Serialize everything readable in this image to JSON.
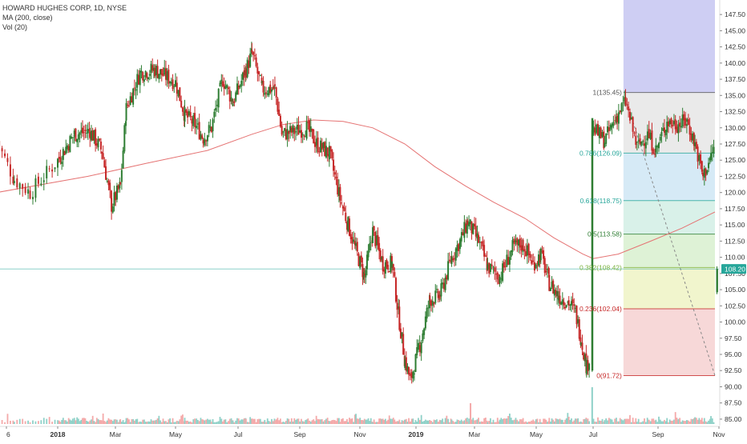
{
  "legend": {
    "symbol_line": "HOWARD HUGHES CORP, 1D, NYSE",
    "ma_line": "MA (200, close)",
    "vol_line": "Vol (20)"
  },
  "colors": {
    "up": "#26a69a",
    "up_body": "#2e7d32",
    "down": "#c62828",
    "ma": "#e57373",
    "price_badge": "#26a69a"
  },
  "chart_data": {
    "type": "candlestick",
    "title": "HOWARD HUGHES CORP, 1D, NYSE",
    "y_axis": {
      "side": "right",
      "ylim": [
        84.0,
        149.0
      ],
      "ticks": [
        "85.00",
        "87.50",
        "90.00",
        "92.50",
        "95.00",
        "97.50",
        "100.00",
        "102.50",
        "105.00",
        "107.50",
        "110.00",
        "112.50",
        "115.00",
        "117.50",
        "120.00",
        "122.50",
        "125.00",
        "127.50",
        "130.00",
        "132.50",
        "135.00",
        "137.50",
        "140.00",
        "142.50",
        "145.00",
        "147.50"
      ]
    },
    "x_axis": {
      "ticks": [
        "6",
        "2018",
        "Mar",
        "May",
        "Jul",
        "Sep",
        "Nov",
        "2019",
        "Mar",
        "May",
        "Jul",
        "Sep",
        "Nov"
      ],
      "tick_dates": [
        "2017-12-06",
        "2018-01-01",
        "2018-03-01",
        "2018-05-01",
        "2018-07-01",
        "2018-09-01",
        "2018-11-01",
        "2019-01-01",
        "2019-03-01",
        "2019-05-01",
        "2019-07-01",
        "2019-09-01",
        "2019-11-01"
      ]
    },
    "last_price": "108.20",
    "last_price_value": 108.2,
    "price_path": [
      {
        "date": "2017-12-01",
        "close": 128.0
      },
      {
        "date": "2017-12-10",
        "close": 122.0
      },
      {
        "date": "2017-12-18",
        "close": 120.0
      },
      {
        "date": "2018-01-01",
        "close": 125.0
      },
      {
        "date": "2018-01-18",
        "close": 129.0
      },
      {
        "date": "2018-02-03",
        "close": 129.5
      },
      {
        "date": "2018-02-15",
        "close": 126.5
      },
      {
        "date": "2018-02-25",
        "close": 118.0
      },
      {
        "date": "2018-03-06",
        "close": 121.0
      },
      {
        "date": "2018-03-12",
        "close": 133.0
      },
      {
        "date": "2018-03-26",
        "close": 138.5
      },
      {
        "date": "2018-04-10",
        "close": 139.0
      },
      {
        "date": "2018-05-01",
        "close": 137.0
      },
      {
        "date": "2018-05-10",
        "close": 132.0
      },
      {
        "date": "2018-05-20",
        "close": 130.5
      },
      {
        "date": "2018-05-28",
        "close": 128.5
      },
      {
        "date": "2018-06-05",
        "close": 130.0
      },
      {
        "date": "2018-06-16",
        "close": 137.5
      },
      {
        "date": "2018-06-26",
        "close": 134.0
      },
      {
        "date": "2018-07-09",
        "close": 139.0
      },
      {
        "date": "2018-07-15",
        "close": 141.5
      },
      {
        "date": "2018-07-25",
        "close": 136.0
      },
      {
        "date": "2018-08-07",
        "close": 136.0
      },
      {
        "date": "2018-08-14",
        "close": 129.0
      },
      {
        "date": "2018-08-28",
        "close": 129.5
      },
      {
        "date": "2018-09-08",
        "close": 130.0
      },
      {
        "date": "2018-09-18",
        "close": 127.5
      },
      {
        "date": "2018-10-01",
        "close": 126.0
      },
      {
        "date": "2018-10-12",
        "close": 119.0
      },
      {
        "date": "2018-10-20",
        "close": 115.0
      },
      {
        "date": "2018-10-28",
        "close": 111.0
      },
      {
        "date": "2018-11-06",
        "close": 107.0
      },
      {
        "date": "2018-11-15",
        "close": 114.0
      },
      {
        "date": "2018-11-26",
        "close": 109.0
      },
      {
        "date": "2018-12-06",
        "close": 109.0
      },
      {
        "date": "2018-12-14",
        "close": 100.0
      },
      {
        "date": "2018-12-20",
        "close": 94.0
      },
      {
        "date": "2018-12-26",
        "close": 91.0
      },
      {
        "date": "2019-01-05",
        "close": 96.5
      },
      {
        "date": "2019-01-15",
        "close": 103.5
      },
      {
        "date": "2019-01-25",
        "close": 104.0
      },
      {
        "date": "2019-02-06",
        "close": 110.0
      },
      {
        "date": "2019-02-16",
        "close": 113.0
      },
      {
        "date": "2019-02-22",
        "close": 115.5
      },
      {
        "date": "2019-03-05",
        "close": 112.5
      },
      {
        "date": "2019-03-14",
        "close": 108.5
      },
      {
        "date": "2019-03-26",
        "close": 107.0
      },
      {
        "date": "2019-04-08",
        "close": 111.5
      },
      {
        "date": "2019-04-18",
        "close": 112.0
      },
      {
        "date": "2019-04-28",
        "close": 109.0
      },
      {
        "date": "2019-05-06",
        "close": 110.5
      },
      {
        "date": "2019-05-15",
        "close": 106.0
      },
      {
        "date": "2019-05-25",
        "close": 104.0
      },
      {
        "date": "2019-06-05",
        "close": 103.0
      },
      {
        "date": "2019-06-12",
        "close": 101.5
      },
      {
        "date": "2019-06-18",
        "close": 97.5
      },
      {
        "date": "2019-06-24",
        "close": 93.0
      },
      {
        "date": "2019-06-28",
        "close": 95.0
      },
      {
        "date": "2019-06-30",
        "close": 130.0
      },
      {
        "date": "2019-07-12",
        "close": 128.0
      },
      {
        "date": "2019-07-24",
        "close": 132.0
      },
      {
        "date": "2019-08-01",
        "close": 134.0
      },
      {
        "date": "2019-08-12",
        "close": 127.0
      },
      {
        "date": "2019-08-22",
        "close": 129.0
      },
      {
        "date": "2019-08-30",
        "close": 126.5
      },
      {
        "date": "2019-09-10",
        "close": 131.0
      },
      {
        "date": "2019-09-20",
        "close": 130.5
      },
      {
        "date": "2019-09-30",
        "close": 131.0
      },
      {
        "date": "2019-10-08",
        "close": 127.5
      },
      {
        "date": "2019-10-16",
        "close": 122.5
      },
      {
        "date": "2019-10-24",
        "close": 125.5
      },
      {
        "date": "2019-10-28",
        "close": 127.5
      }
    ],
    "post_gap_bar": {
      "date": "2019-10-30",
      "open": 104.6,
      "high": 108.6,
      "low": 104.3,
      "close": 108.2
    },
    "ma200": [
      {
        "date": "2017-12-01",
        "value": 120.0
      },
      {
        "date": "2018-02-01",
        "value": 122.5
      },
      {
        "date": "2018-04-01",
        "value": 124.5
      },
      {
        "date": "2018-06-01",
        "value": 126.5
      },
      {
        "date": "2018-07-15",
        "value": 129.0
      },
      {
        "date": "2018-08-15",
        "value": 130.5
      },
      {
        "date": "2018-09-15",
        "value": 131.2
      },
      {
        "date": "2018-10-15",
        "value": 131.0
      },
      {
        "date": "2018-11-15",
        "value": 130.0
      },
      {
        "date": "2018-12-20",
        "value": 127.5
      },
      {
        "date": "2019-01-20",
        "value": 124.0
      },
      {
        "date": "2019-02-20",
        "value": 121.0
      },
      {
        "date": "2019-03-20",
        "value": 118.5
      },
      {
        "date": "2019-04-20",
        "value": 116.0
      },
      {
        "date": "2019-05-20",
        "value": 113.0
      },
      {
        "date": "2019-06-20",
        "value": 110.5
      },
      {
        "date": "2019-07-01",
        "value": 109.8
      },
      {
        "date": "2019-07-25",
        "value": 110.5
      },
      {
        "date": "2019-08-25",
        "value": 112.5
      },
      {
        "date": "2019-09-25",
        "value": 114.5
      },
      {
        "date": "2019-10-28",
        "value": 117.0
      }
    ],
    "fibonacci": {
      "start_date": "2019-07-30",
      "end_date": "2019-10-28",
      "trend_from": {
        "date": "2019-08-01",
        "price": 91.72
      },
      "trend_to": {
        "date": "2019-10-28",
        "price": 135.45
      },
      "levels": [
        {
          "ratio": "0",
          "price": 91.72,
          "label": "0(91.72)",
          "color": "#c62828",
          "fill": "#f6d1d1"
        },
        {
          "ratio": "0.236",
          "price": 102.04,
          "label": "0.236(102.04)",
          "color": "#c62828",
          "fill": "#eef3c4"
        },
        {
          "ratio": "0.382",
          "price": 108.42,
          "label": "0.382(108.42)",
          "color": "#7cb342",
          "fill": "#d8f0cf"
        },
        {
          "ratio": "0.5",
          "price": 113.58,
          "label": "0.5(113.58)",
          "color": "#2e7d32",
          "fill": "#d2efe5"
        },
        {
          "ratio": "0.618",
          "price": 118.75,
          "label": "0.618(118.75)",
          "color": "#26a69a",
          "fill": "#cfe6f5"
        },
        {
          "ratio": "0.786",
          "price": 126.09,
          "label": "0.786(126.09)",
          "color": "#26a69a",
          "fill": "#e6e6e6"
        },
        {
          "ratio": "1",
          "price": 135.45,
          "label": "1(135.45)",
          "color": "#555555",
          "fill": "#c9c9f2"
        }
      ]
    },
    "volume_spikes": [
      {
        "date": "2019-02-25"
      },
      {
        "date": "2019-06-30"
      }
    ]
  }
}
